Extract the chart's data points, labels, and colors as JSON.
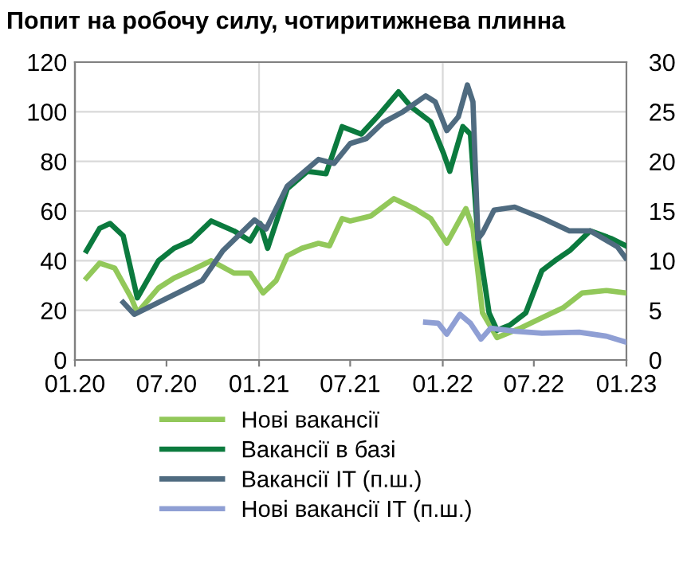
{
  "chart_data": {
    "type": "line",
    "title": "Попит на робочу силу, чотиритижнева плинна",
    "xlim": [
      "2020-01-01",
      "2023-01-01"
    ],
    "xticks": [
      {
        "value": "2020-01-01",
        "label": "01.20"
      },
      {
        "value": "2020-07-01",
        "label": "07.20"
      },
      {
        "value": "2021-01-01",
        "label": "01.21"
      },
      {
        "value": "2021-07-01",
        "label": "07.21"
      },
      {
        "value": "2022-01-01",
        "label": "01.22"
      },
      {
        "value": "2022-07-01",
        "label": "07.22"
      },
      {
        "value": "2023-01-01",
        "label": "01.23"
      }
    ],
    "ylim": [
      0,
      120
    ],
    "yticks": [
      0,
      20,
      40,
      60,
      80,
      100,
      120
    ],
    "y2lim": [
      0,
      30
    ],
    "y2ticks": [
      0,
      5,
      10,
      15,
      20,
      25,
      30
    ],
    "grid": "y",
    "legend": "bottom",
    "marker": "none",
    "line_style": "solid",
    "ref_lines": [
      {
        "axis": "x",
        "value": "2021-01-01",
        "label": null,
        "color": "#d9d9d9"
      },
      {
        "axis": "x",
        "value": "2022-01-01",
        "label": null,
        "color": "#d9d9d9"
      }
    ],
    "series": [
      {
        "name": "Нові вакансії",
        "color": "#92c85a",
        "x": [
          "2020-01-24",
          "2020-02-19",
          "2020-03-20",
          "2020-04-22",
          "2020-05-04",
          "2020-06-15",
          "2020-07-16",
          "2020-08-18",
          "2020-09-28",
          "2020-11-12",
          "2020-12-14",
          "2021-01-09",
          "2021-02-04",
          "2021-02-26",
          "2021-03-27",
          "2021-04-29",
          "2021-05-21",
          "2021-06-15",
          "2021-07-01",
          "2021-08-11",
          "2021-09-26",
          "2021-11-06",
          "2021-12-08",
          "2022-01-09",
          "2022-02-16",
          "2022-03-02",
          "2022-03-21",
          "2022-04-19",
          "2022-06-06",
          "2022-07-17",
          "2022-08-28",
          "2022-10-05",
          "2022-11-22",
          "2022-12-31"
        ],
        "values": [
          33,
          39,
          37,
          25,
          19,
          29,
          33,
          36,
          40,
          35,
          35,
          27,
          32,
          42,
          45,
          47,
          46,
          57,
          56,
          58,
          65,
          61,
          57,
          47,
          61,
          53,
          19,
          9,
          13,
          17,
          21,
          27,
          28,
          27
        ]
      },
      {
        "name": "Вакансії в базі",
        "color": "#0b7a3e",
        "x": [
          "2020-01-24",
          "2020-02-19",
          "2020-03-11",
          "2020-04-06",
          "2020-05-04",
          "2020-06-15",
          "2020-07-16",
          "2020-08-18",
          "2020-09-28",
          "2020-11-12",
          "2020-12-14",
          "2021-01-03",
          "2021-01-18",
          "2021-02-26",
          "2021-04-07",
          "2021-05-14",
          "2021-06-15",
          "2021-07-23",
          "2021-08-24",
          "2021-10-05",
          "2021-10-30",
          "2021-12-08",
          "2022-01-03",
          "2022-01-15",
          "2022-02-10",
          "2022-02-25",
          "2022-03-12",
          "2022-04-03",
          "2022-04-19",
          "2022-05-14",
          "2022-06-15",
          "2022-07-17",
          "2022-08-12",
          "2022-09-10",
          "2022-10-21",
          "2022-12-01",
          "2022-12-31"
        ],
        "values": [
          44,
          53,
          55,
          50,
          25,
          40,
          45,
          48,
          56,
          52,
          48,
          55,
          45,
          69,
          76,
          75,
          94,
          91,
          98,
          108,
          102,
          96,
          83,
          76,
          94,
          91,
          49,
          19,
          12,
          14,
          19,
          36,
          40,
          44,
          52,
          49,
          46
        ]
      },
      {
        "name": "Вакансії IT (п.ш.)",
        "color": "#4f6b80",
        "axis": "y2",
        "x": [
          "2020-04-06",
          "2020-04-28",
          "2020-06-15",
          "2020-08-18",
          "2020-09-10",
          "2020-10-21",
          "2020-12-23",
          "2021-01-15",
          "2021-02-26",
          "2021-04-29",
          "2021-05-30",
          "2021-07-01",
          "2021-08-02",
          "2021-09-04",
          "2021-10-14",
          "2021-11-28",
          "2021-12-17",
          "2022-01-09",
          "2022-02-01",
          "2022-02-19",
          "2022-03-02",
          "2022-03-12",
          "2022-03-21",
          "2022-04-13",
          "2022-05-24",
          "2022-07-17",
          "2022-09-10",
          "2022-10-21",
          "2022-12-14",
          "2022-12-30"
        ],
        "values": [
          5.8,
          4.6,
          5.8,
          7.4,
          8,
          11,
          14.1,
          13.2,
          17.5,
          20.2,
          19.8,
          21.8,
          22.3,
          23.9,
          25,
          26.6,
          26,
          23.1,
          24.5,
          27.7,
          26,
          12.2,
          12.8,
          15.1,
          15.4,
          14.3,
          13,
          13,
          11.4,
          10.3
        ]
      },
      {
        "name": "Нові вакансії IT (п.ш.)",
        "color": "#8f9fd4",
        "axis": "y2",
        "x": [
          "2021-11-28",
          "2021-12-23",
          "2022-01-09",
          "2022-02-04",
          "2022-02-25",
          "2022-03-18",
          "2022-04-06",
          "2022-05-24",
          "2022-07-17",
          "2022-09-29",
          "2022-11-22",
          "2022-12-31"
        ],
        "values": [
          3.8,
          3.7,
          2.6,
          4.6,
          3.7,
          2.1,
          3.2,
          2.9,
          2.7,
          2.8,
          2.4,
          1.8
        ]
      }
    ]
  }
}
